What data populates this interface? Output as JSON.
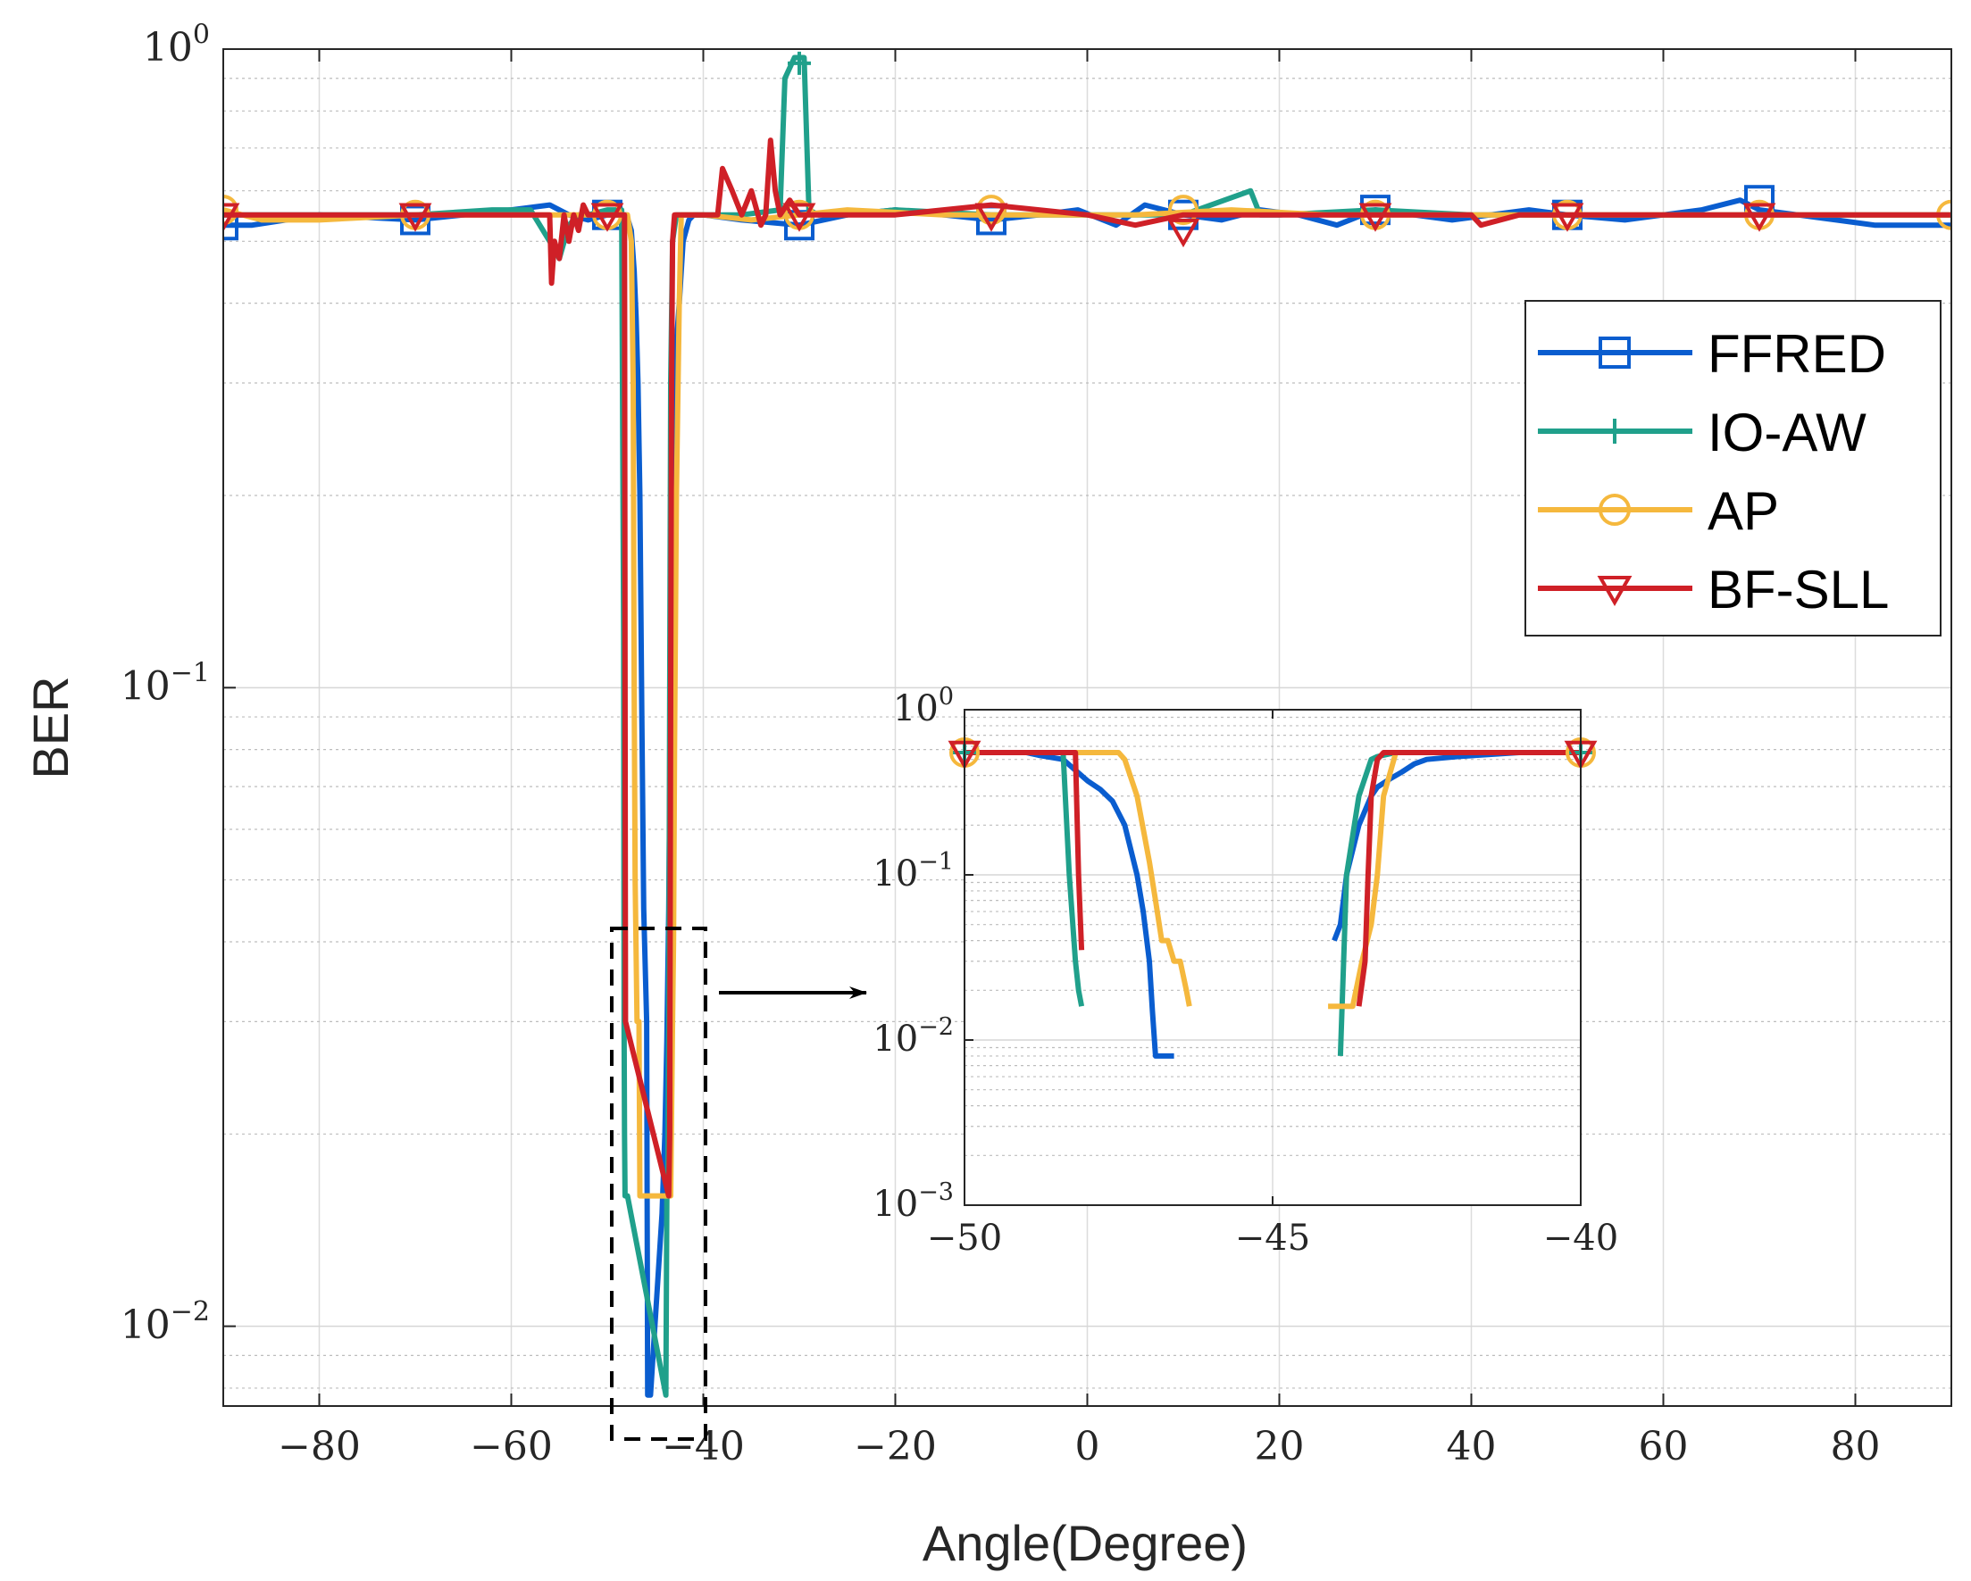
{
  "chart_data": {
    "type": "line",
    "xlabel": "Angle(Degree)",
    "ylabel": "BER",
    "xlim": [
      -90,
      90
    ],
    "ylim": [
      0.0075,
      1.0
    ],
    "yscale": "log",
    "grid": true,
    "legend_position": "right",
    "x_ticks": [
      -80,
      -60,
      -40,
      -20,
      0,
      20,
      40,
      60,
      80
    ],
    "x_tick_labels": [
      "−80",
      "−60",
      "−40",
      "−20",
      "0",
      "20",
      "40",
      "60",
      "80"
    ],
    "y_ticks": [
      {
        "value": 1,
        "base": "10",
        "exp": "0"
      },
      {
        "value": 0.1,
        "base": "10",
        "exp": "−1"
      },
      {
        "value": 0.01,
        "base": "10",
        "exp": "−2"
      }
    ],
    "series": [
      {
        "name": "FFRED",
        "color": "#0a5dcf",
        "marker": "square",
        "x": [
          -90,
          -87,
          -80,
          -70,
          -60,
          -56,
          -54,
          -52,
          -50,
          -48,
          -47.5,
          -47.2,
          -47.0,
          -46.8,
          -46.6,
          -46.4,
          -46.2,
          -45.9,
          -45.8,
          -45.5,
          -44.3,
          -44.0,
          -43.8,
          -43.6,
          -43.4,
          -43.3,
          -42.9,
          -42.5,
          -42.1,
          -41.5,
          -41,
          -40,
          -36,
          -30,
          -25,
          -20,
          -15,
          -10,
          -5,
          -1,
          3,
          6,
          10,
          14,
          18,
          22,
          26,
          30,
          34,
          38,
          42,
          46,
          50,
          56,
          60,
          64,
          68,
          70,
          74,
          78,
          82,
          86,
          90
        ],
        "y": [
          0.53,
          0.53,
          0.55,
          0.54,
          0.56,
          0.57,
          0.55,
          0.54,
          0.55,
          0.55,
          0.52,
          0.45,
          0.38,
          0.3,
          0.2,
          0.09,
          0.045,
          0.03,
          0.0078,
          0.0078,
          0.015,
          0.02,
          0.028,
          0.045,
          0.1,
          0.2,
          0.33,
          0.4,
          0.5,
          0.54,
          0.55,
          0.55,
          0.54,
          0.53,
          0.55,
          0.56,
          0.55,
          0.54,
          0.55,
          0.56,
          0.53,
          0.57,
          0.55,
          0.54,
          0.56,
          0.55,
          0.53,
          0.56,
          0.55,
          0.54,
          0.55,
          0.56,
          0.55,
          0.54,
          0.55,
          0.56,
          0.58,
          0.56,
          0.55,
          0.54,
          0.53,
          0.53,
          0.53
        ],
        "markers_x": [
          -90,
          -70,
          -50,
          -30,
          -10,
          10,
          30,
          50,
          70
        ],
        "markers_y": [
          0.53,
          0.54,
          0.55,
          0.53,
          0.54,
          0.55,
          0.56,
          0.55,
          0.58
        ]
      },
      {
        "name": "IO-AW",
        "color": "#20a08b",
        "marker": "plus",
        "x": [
          -90,
          -80,
          -70,
          -62,
          -58,
          -56,
          -55,
          -54,
          -53,
          -52,
          -50,
          -48.5,
          -48.3,
          -48.25,
          -48.2,
          -48.15,
          -48.1,
          -47.9,
          -43.9,
          -43.8,
          -43.7,
          -43.6,
          -43.5,
          -43.4,
          -43.2,
          -42.8,
          -42,
          -40,
          -36,
          -32,
          -31.5,
          -30.5,
          -29.5,
          -29,
          -28,
          -25,
          -20,
          -10,
          0,
          10,
          17,
          18,
          20,
          30,
          40,
          50,
          60,
          70,
          80,
          90
        ],
        "y": [
          0.55,
          0.55,
          0.55,
          0.56,
          0.56,
          0.5,
          0.47,
          0.53,
          0.55,
          0.55,
          0.56,
          0.56,
          0.12,
          0.03,
          0.02,
          0.016,
          0.016,
          0.016,
          0.0078,
          0.016,
          0.016,
          0.03,
          0.1,
          0.3,
          0.5,
          0.55,
          0.55,
          0.55,
          0.55,
          0.56,
          0.9,
          0.97,
          0.97,
          0.56,
          0.55,
          0.55,
          0.56,
          0.55,
          0.55,
          0.55,
          0.6,
          0.55,
          0.55,
          0.56,
          0.55,
          0.55,
          0.55,
          0.55,
          0.55,
          0.55
        ],
        "markers_x": [
          -30
        ],
        "markers_y": [
          0.95
        ]
      },
      {
        "name": "AP",
        "color": "#f5b83d",
        "marker": "circle",
        "x": [
          -90,
          -86,
          -80,
          -70,
          -60,
          -52,
          -50,
          -47.9,
          -47.5,
          -47.3,
          -47.2,
          -47.1,
          -46.9,
          -46.7,
          -46.6,
          -46.5,
          -46.0,
          -43.6,
          -43.4,
          -43.2,
          -43.1,
          -43.0,
          -42.8,
          -42.5,
          -42.3,
          -42,
          -40,
          -35,
          -25,
          -15,
          -5,
          5,
          15,
          25,
          35,
          45,
          55,
          65,
          75,
          90
        ],
        "y": [
          0.56,
          0.54,
          0.54,
          0.55,
          0.55,
          0.55,
          0.55,
          0.55,
          0.5,
          0.3,
          0.1,
          0.05,
          0.03,
          0.03,
          0.016,
          0.016,
          0.016,
          0.016,
          0.016,
          0.03,
          0.04,
          0.08,
          0.2,
          0.4,
          0.55,
          0.55,
          0.55,
          0.54,
          0.56,
          0.55,
          0.55,
          0.55,
          0.56,
          0.55,
          0.55,
          0.55,
          0.55,
          0.55,
          0.55,
          0.55
        ],
        "markers_x": [
          -90,
          -70,
          -50,
          -30,
          -10,
          10,
          30,
          50,
          70,
          90
        ],
        "markers_y": [
          0.56,
          0.55,
          0.55,
          0.55,
          0.56,
          0.56,
          0.55,
          0.55,
          0.55,
          0.55
        ]
      },
      {
        "name": "BF-SLL",
        "color": "#cf2027",
        "marker": "triangle-down",
        "x": [
          -90,
          -70,
          -56,
          -55.8,
          -55.5,
          -55,
          -54.5,
          -54,
          -53.5,
          -53,
          -52.5,
          -52,
          -50,
          -48.2,
          -48.15,
          -48.1,
          -43.6,
          -43.5,
          -43.4,
          -43.3,
          -43.2,
          -43,
          -42,
          -40,
          -38.5,
          -38,
          -37,
          -36,
          -35,
          -34,
          -33.5,
          -33,
          -32.5,
          -32,
          -31,
          -30,
          -25,
          -20,
          -10,
          0,
          5,
          10,
          15,
          20,
          30,
          40,
          41,
          45,
          50,
          60,
          70,
          80,
          90
        ],
        "y": [
          0.55,
          0.55,
          0.55,
          0.43,
          0.5,
          0.47,
          0.55,
          0.5,
          0.55,
          0.52,
          0.57,
          0.55,
          0.55,
          0.55,
          0.1,
          0.03,
          0.016,
          0.02,
          0.1,
          0.3,
          0.5,
          0.55,
          0.55,
          0.55,
          0.55,
          0.65,
          0.6,
          0.55,
          0.6,
          0.53,
          0.55,
          0.72,
          0.6,
          0.55,
          0.58,
          0.55,
          0.55,
          0.55,
          0.57,
          0.55,
          0.53,
          0.55,
          0.55,
          0.55,
          0.55,
          0.55,
          0.53,
          0.55,
          0.55,
          0.55,
          0.55,
          0.55,
          0.55
        ],
        "markers_x": [
          -90,
          -70,
          -50,
          -30,
          -10,
          10,
          30,
          50,
          70
        ],
        "markers_y": [
          0.55,
          0.55,
          0.55,
          0.55,
          0.55,
          0.52,
          0.55,
          0.55,
          0.55
        ]
      }
    ],
    "inset": {
      "xlim": [
        -50,
        -40
      ],
      "ylim": [
        0.001,
        1.0
      ],
      "yscale": "log",
      "x_ticks": [
        -50,
        -45,
        -40
      ],
      "x_tick_labels": [
        "−50",
        "−45",
        "−40"
      ],
      "y_ticks": [
        {
          "value": 1,
          "base": "10",
          "exp": "0"
        },
        {
          "value": 0.1,
          "base": "10",
          "exp": "−1"
        },
        {
          "value": 0.01,
          "base": "10",
          "exp": "−2"
        },
        {
          "value": 0.001,
          "base": "10",
          "exp": "−3"
        }
      ],
      "series": [
        {
          "name": "FFRED",
          "color": "#0a5dcf",
          "x": [
            -50,
            -49,
            -48.8,
            -48.4,
            -48.0,
            -47.8,
            -47.6,
            -47.4,
            -47.2,
            -47.1,
            -47.0,
            -46.95,
            -46.9,
            -46.8,
            -46.7,
            -46.6,
            null,
            -44.0,
            -43.9,
            -43.8,
            -43.6,
            -43.4,
            -43.3,
            -43.1,
            -42.9,
            -42.7,
            -42.5,
            -42,
            -41,
            -40
          ],
          "y": [
            0.55,
            0.55,
            0.53,
            0.5,
            0.37,
            0.33,
            0.28,
            0.2,
            0.1,
            0.06,
            0.03,
            0.015,
            0.008,
            0.008,
            0.008,
            0.008,
            null,
            0.04,
            0.05,
            0.1,
            0.2,
            0.3,
            0.34,
            0.38,
            0.42,
            0.47,
            0.5,
            0.52,
            0.55,
            0.55
          ]
        },
        {
          "name": "IO-AW",
          "color": "#20a08b",
          "x": [
            -50,
            -48.4,
            -48.3,
            -48.2,
            -48.15,
            -48.1,
            null,
            -43.9,
            -43.8,
            -43.6,
            -43.4,
            -43.3,
            -43.0,
            -42,
            -40
          ],
          "y": [
            0.55,
            0.55,
            0.1,
            0.03,
            0.02,
            0.016,
            null,
            0.008,
            0.1,
            0.3,
            0.5,
            0.52,
            0.55,
            0.55,
            0.55
          ],
          "markers_x": [
            -50,
            -40
          ],
          "markers_y": [
            0.55,
            0.55
          ]
        },
        {
          "name": "AP",
          "color": "#f5b83d",
          "x": [
            -50,
            -48.0,
            -47.5,
            -47.4,
            -47.2,
            -47.0,
            -46.9,
            -46.8,
            -46.7,
            -46.6,
            -46.5,
            -46.4,
            -46.35,
            null,
            -44.1,
            -43.7,
            -43.55,
            -43.4,
            -43.3,
            -43.2,
            -43.0,
            -42.8,
            -42.5,
            -40
          ],
          "y": [
            0.55,
            0.55,
            0.55,
            0.5,
            0.3,
            0.12,
            0.07,
            0.04,
            0.04,
            0.03,
            0.03,
            0.02,
            0.016,
            null,
            0.016,
            0.016,
            0.03,
            0.05,
            0.1,
            0.3,
            0.55,
            0.55,
            0.55,
            0.55
          ],
          "markers_x": [
            -50,
            -40
          ],
          "markers_y": [
            0.55,
            0.55
          ]
        },
        {
          "name": "BF-SLL",
          "color": "#cf2027",
          "x": [
            -50,
            -48.2,
            -48.15,
            -48.1,
            null,
            -43.6,
            -43.5,
            -43.45,
            -43.4,
            -43.3,
            -43.2,
            -43.0,
            -42,
            -40
          ],
          "y": [
            0.55,
            0.55,
            0.1,
            0.035,
            null,
            0.016,
            0.03,
            0.1,
            0.3,
            0.5,
            0.55,
            0.55,
            0.55,
            0.55
          ],
          "markers_x": [
            -50,
            -40
          ],
          "markers_y": [
            0.55,
            0.55
          ]
        }
      ]
    }
  }
}
